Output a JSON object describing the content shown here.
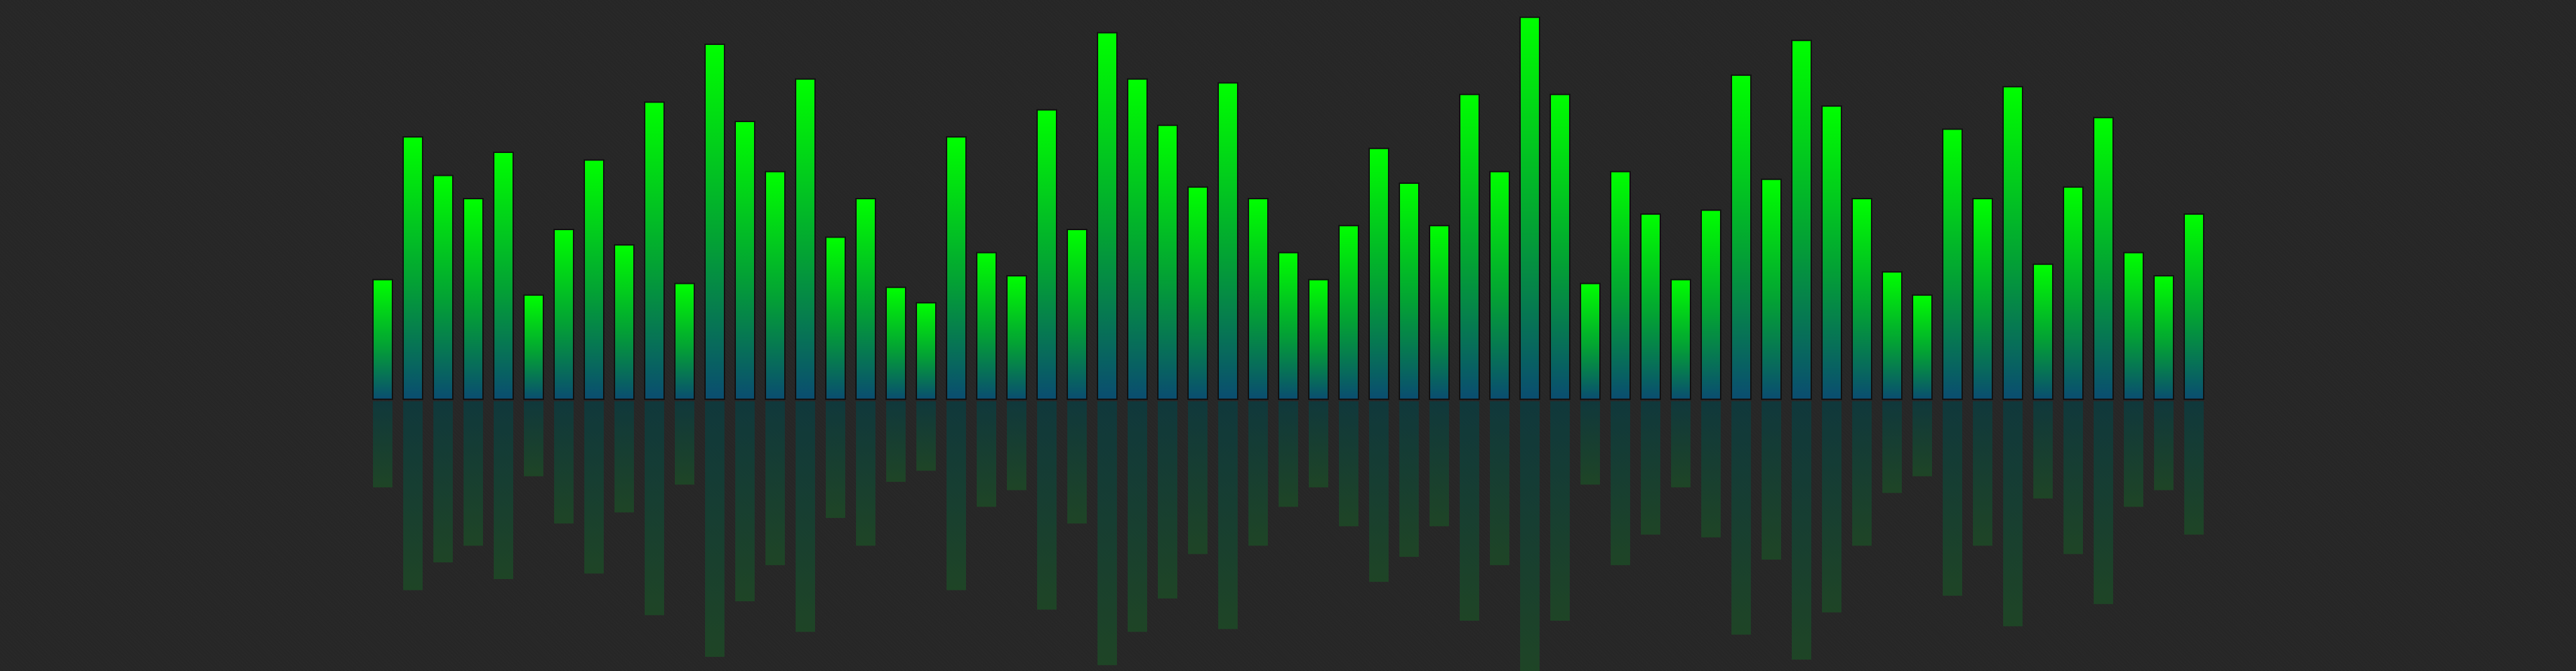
{
  "visualizer": {
    "levels": [
      0.31,
      0.68,
      0.58,
      0.52,
      0.64,
      0.27,
      0.44,
      0.62,
      0.4,
      0.77,
      0.3,
      0.92,
      0.72,
      0.59,
      0.83,
      0.42,
      0.52,
      0.29,
      0.25,
      0.68,
      0.38,
      0.32,
      0.75,
      0.44,
      0.95,
      0.83,
      0.71,
      0.55,
      0.82,
      0.52,
      0.38,
      0.31,
      0.45,
      0.65,
      0.56,
      0.45,
      0.79,
      0.59,
      0.99,
      0.79,
      0.3,
      0.59,
      0.48,
      0.31,
      0.49,
      0.84,
      0.57,
      0.93,
      0.76,
      0.52,
      0.33,
      0.27,
      0.7,
      0.52,
      0.81,
      0.35,
      0.55,
      0.73,
      0.38,
      0.32,
      0.48
    ],
    "colors": {
      "top": "#00ff00",
      "bottom": "#0a4d70",
      "reflection_top": "#0c3b3f",
      "reflection_bottom": "#1d4a26",
      "bar_border": "#111111"
    }
  }
}
